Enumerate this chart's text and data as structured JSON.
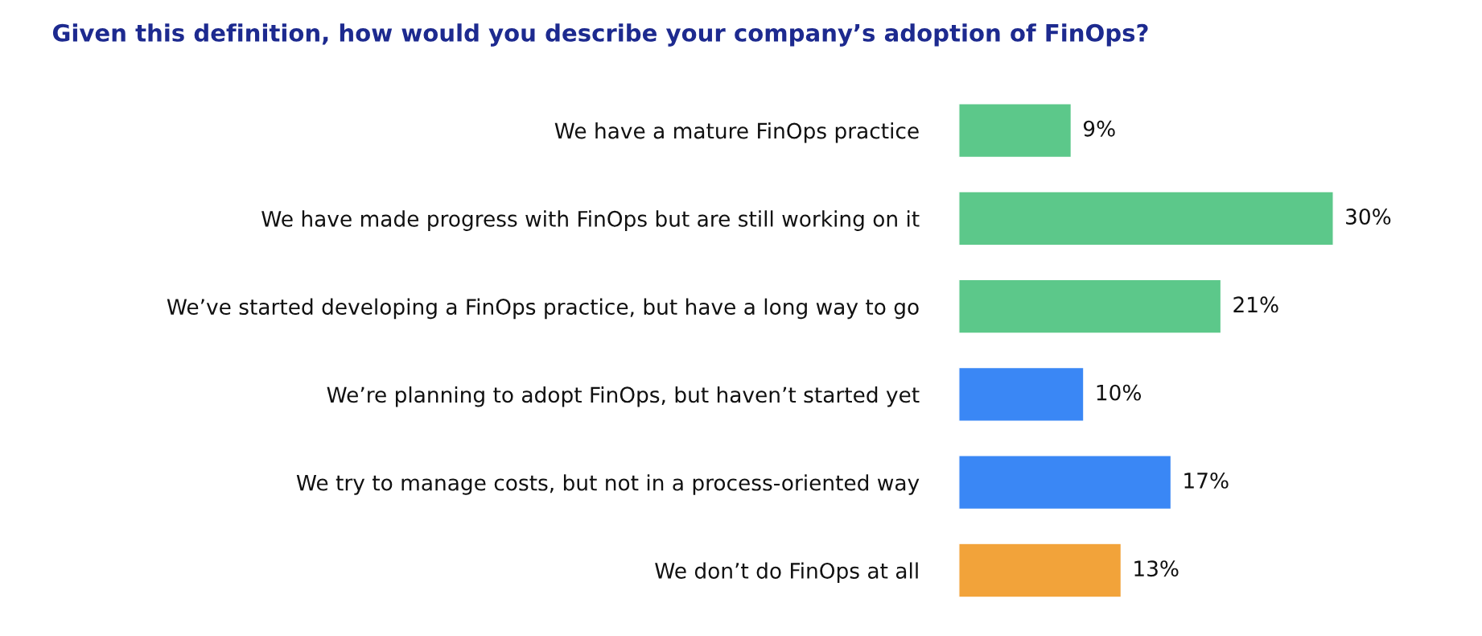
{
  "chart_data": {
    "type": "bar",
    "orientation": "horizontal",
    "title": "Given this definition, how would you describe your company’s adoption of FinOps?",
    "categories": [
      "We have a mature FinOps practice",
      "We have made progress with FinOps but are still working on it",
      "We’ve started developing a FinOps practice, but have a long way to go",
      "We’re planning to adopt FinOps, but haven’t started yet",
      "We try to manage costs, but not in a process-oriented way",
      "We don’t do FinOps at all"
    ],
    "values": [
      9,
      30,
      21,
      10,
      17,
      13
    ],
    "colors": [
      "#5cc88a",
      "#5cc88a",
      "#5cc88a",
      "#3a87f5",
      "#3a87f5",
      "#f2a33a"
    ],
    "value_labels": [
      "9%",
      "30%",
      "21%",
      "10%",
      "17%",
      "13%"
    ],
    "grid": false,
    "legend": false
  }
}
